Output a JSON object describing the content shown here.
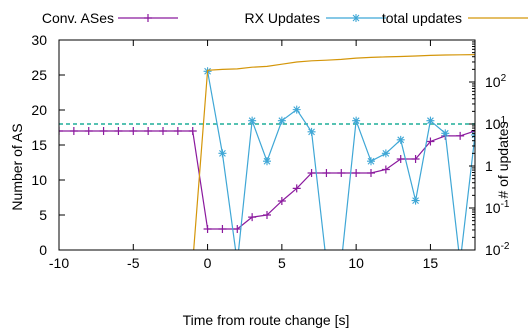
{
  "chart_data": {
    "type": "line",
    "title": "",
    "xlabel": "Time from route change [s]",
    "ylabel": "Number of AS",
    "y2label": "# of updates",
    "xlim": [
      -10,
      18
    ],
    "ylim": [
      0,
      30
    ],
    "y2lim_log": [
      0.01,
      1000
    ],
    "xticks": [
      "-10",
      "-5",
      "0",
      "5",
      "10",
      "15"
    ],
    "yticks": [
      "0",
      "5",
      "10",
      "15",
      "20",
      "25",
      "30"
    ],
    "y2ticks": [
      {
        "base": "10",
        "exp": "-2",
        "value": 0.01
      },
      {
        "base": "10",
        "exp": "-1",
        "value": 0.1
      },
      {
        "base": "1",
        "exp": "",
        "value": 1
      },
      {
        "base": "10",
        "exp": "1",
        "value": 10
      },
      {
        "base": "10",
        "exp": "2",
        "value": 100
      }
    ],
    "legend_position": "top",
    "series": [
      {
        "name": "Conv. ASes",
        "axis": "left",
        "color": "#8b1a9e",
        "marker": "plus",
        "points": [
          [
            -10,
            17
          ],
          [
            -9,
            17
          ],
          [
            -8,
            17
          ],
          [
            -7,
            17
          ],
          [
            -6,
            17
          ],
          [
            -5,
            17
          ],
          [
            -4,
            17
          ],
          [
            -3,
            17
          ],
          [
            -2,
            17
          ],
          [
            -1,
            17
          ],
          [
            0,
            3
          ],
          [
            1,
            3
          ],
          [
            2,
            3
          ],
          [
            3,
            4.7
          ],
          [
            4,
            5
          ],
          [
            5,
            7
          ],
          [
            6,
            8.8
          ],
          [
            7,
            11
          ],
          [
            8,
            11
          ],
          [
            9,
            11
          ],
          [
            10,
            11
          ],
          [
            11,
            11
          ],
          [
            12,
            11.5
          ],
          [
            13,
            13
          ],
          [
            14,
            13
          ],
          [
            15,
            15.5
          ],
          [
            16,
            16.3
          ],
          [
            17,
            16.3
          ],
          [
            18,
            17
          ]
        ]
      },
      {
        "name": "RX Updates",
        "axis": "right_log",
        "color": "#3fa7d6",
        "marker": "star",
        "points": [
          [
            0,
            180
          ],
          [
            1,
            2.0
          ],
          [
            2,
            0.005
          ],
          [
            3,
            12
          ],
          [
            4,
            1.3
          ],
          [
            5,
            12
          ],
          [
            6,
            22
          ],
          [
            7,
            6.5
          ],
          [
            8,
            0.005
          ],
          [
            9,
            0.005
          ],
          [
            10,
            12
          ],
          [
            11,
            1.3
          ],
          [
            12,
            2.0
          ],
          [
            13,
            4.2
          ],
          [
            14,
            0.15
          ],
          [
            15,
            12
          ],
          [
            16,
            6.0
          ],
          [
            17,
            0.005
          ],
          [
            18,
            5.5
          ]
        ]
      },
      {
        "name": "total updates",
        "axis": "right_log",
        "color": "#d4960a",
        "marker": "none",
        "points": [
          [
            -1,
            0.005
          ],
          [
            0,
            190
          ],
          [
            1,
            200
          ],
          [
            2,
            205
          ],
          [
            3,
            225
          ],
          [
            4,
            235
          ],
          [
            5,
            265
          ],
          [
            6,
            300
          ],
          [
            7,
            320
          ],
          [
            8,
            330
          ],
          [
            9,
            345
          ],
          [
            10,
            370
          ],
          [
            11,
            385
          ],
          [
            12,
            395
          ],
          [
            13,
            405
          ],
          [
            14,
            415
          ],
          [
            15,
            430
          ],
          [
            16,
            440
          ],
          [
            17,
            445
          ],
          [
            18,
            450
          ]
        ]
      }
    ],
    "reference_line": {
      "axis": "right_log",
      "value": 10,
      "color": "#3fb9a8",
      "style": "dashed"
    }
  }
}
